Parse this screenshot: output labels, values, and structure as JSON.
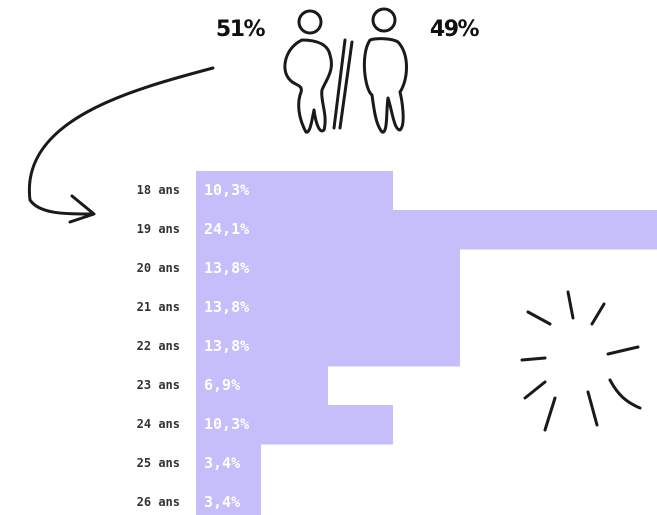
{
  "chart_data": {
    "type": "bar",
    "orientation": "horizontal",
    "categories": [
      "18 ans",
      "19 ans",
      "20 ans",
      "21 ans",
      "22 ans",
      "23 ans",
      "24 ans",
      "25 ans",
      "26 ans"
    ],
    "values": [
      10.3,
      24.1,
      13.8,
      13.8,
      13.8,
      6.9,
      10.3,
      3.4,
      3.4
    ],
    "value_labels": [
      "10,3%",
      "24,1%",
      "13,8%",
      "13,8%",
      "13,8%",
      "6,9%",
      "10,3%",
      "3,4%",
      "3,4%"
    ],
    "color": "#c6befb",
    "annotations": [
      "51%",
      "49%"
    ]
  }
}
